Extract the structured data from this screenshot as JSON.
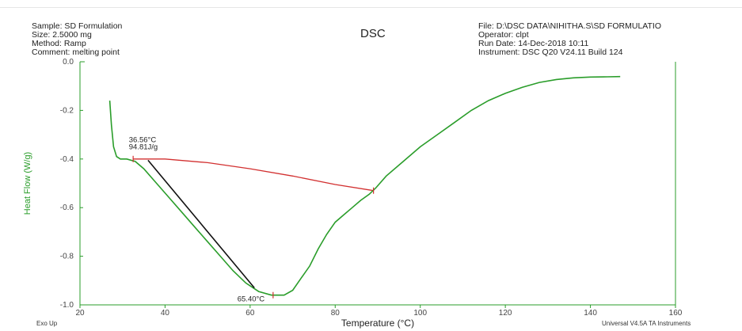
{
  "header": {
    "sample_line": "Sample: SD Formulation",
    "size_line": "Size:  2.5000 mg",
    "method_line": "Method: Ramp",
    "comment_line": "Comment: melting point",
    "file_line": "File: D:\\DSC DATA\\NIHITHA.S\\SD FORMULATIO",
    "operator_line": "Operator: clpt",
    "run_date_line": "Run Date: 14-Dec-2018 10:11",
    "instrument_line": "Instrument: DSC Q20 V24.11 Build 124"
  },
  "footer": {
    "left": "Exo Up",
    "right": "Universal V4.5A TA Instruments"
  },
  "colors": {
    "curve": "#2a9d2a",
    "baseline": "#d23030",
    "tangent": "#111111",
    "axis": "#2a9d2a"
  },
  "chart_data": {
    "type": "line",
    "title": "DSC",
    "xlabel": "Temperature (°C)",
    "ylabel": "Heat Flow (W/g)",
    "xlim": [
      20,
      160
    ],
    "ylim": [
      -1.0,
      0.0
    ],
    "x_ticks": [
      20,
      40,
      60,
      80,
      100,
      120,
      140,
      160
    ],
    "y_ticks": [
      0.0,
      -0.2,
      -0.4,
      -0.6,
      -0.8,
      -1.0
    ],
    "y_tick_labels": [
      "0.0",
      "-0.2",
      "-0.4",
      "-0.6",
      "-0.8",
      "-1.0"
    ],
    "grid": false,
    "series": [
      {
        "points": [
          [
            27.0,
            -0.16
          ],
          [
            27.4,
            -0.26
          ],
          [
            27.9,
            -0.35
          ],
          [
            28.6,
            -0.39
          ],
          [
            29.5,
            -0.4
          ],
          [
            31,
            -0.4
          ],
          [
            33,
            -0.41
          ],
          [
            35,
            -0.44
          ],
          [
            38,
            -0.5
          ],
          [
            41,
            -0.56
          ],
          [
            44,
            -0.62
          ],
          [
            47,
            -0.68
          ],
          [
            50,
            -0.74
          ],
          [
            53,
            -0.8
          ],
          [
            56,
            -0.86
          ],
          [
            59,
            -0.91
          ],
          [
            62,
            -0.945
          ],
          [
            65,
            -0.96
          ],
          [
            68,
            -0.96
          ],
          [
            70,
            -0.94
          ],
          [
            72,
            -0.89
          ],
          [
            74,
            -0.84
          ],
          [
            76,
            -0.77
          ],
          [
            78,
            -0.71
          ],
          [
            80,
            -0.66
          ],
          [
            82,
            -0.63
          ],
          [
            84,
            -0.6
          ],
          [
            86,
            -0.57
          ],
          [
            88,
            -0.545
          ],
          [
            89.5,
            -0.52
          ],
          [
            92,
            -0.47
          ],
          [
            96,
            -0.41
          ],
          [
            100,
            -0.35
          ],
          [
            104,
            -0.3
          ],
          [
            108,
            -0.25
          ],
          [
            112,
            -0.2
          ],
          [
            116,
            -0.16
          ],
          [
            120,
            -0.13
          ],
          [
            124,
            -0.105
          ],
          [
            128,
            -0.085
          ],
          [
            132,
            -0.073
          ],
          [
            136,
            -0.066
          ],
          [
            140,
            -0.063
          ],
          [
            144,
            -0.062
          ],
          [
            147,
            -0.061
          ]
        ]
      }
    ],
    "baseline": [
      [
        32.5,
        -0.4
      ],
      [
        40,
        -0.4
      ],
      [
        50,
        -0.415
      ],
      [
        60,
        -0.44
      ],
      [
        70,
        -0.47
      ],
      [
        80,
        -0.505
      ],
      [
        89,
        -0.53
      ]
    ],
    "tangent": [
      [
        36,
        -0.405
      ],
      [
        61,
        -0.93
      ]
    ],
    "annotations": [
      {
        "text": "36.56°C",
        "x": 31.5,
        "y": -0.33
      },
      {
        "text": "94.81J/g",
        "x": 31.5,
        "y": -0.36
      },
      {
        "text": "65.40°C",
        "x": 57,
        "y": -0.985
      }
    ],
    "markers": [
      {
        "x": 32.5,
        "y": -0.4
      },
      {
        "x": 89,
        "y": -0.53
      },
      {
        "x": 65.4,
        "y": -0.96
      }
    ]
  }
}
